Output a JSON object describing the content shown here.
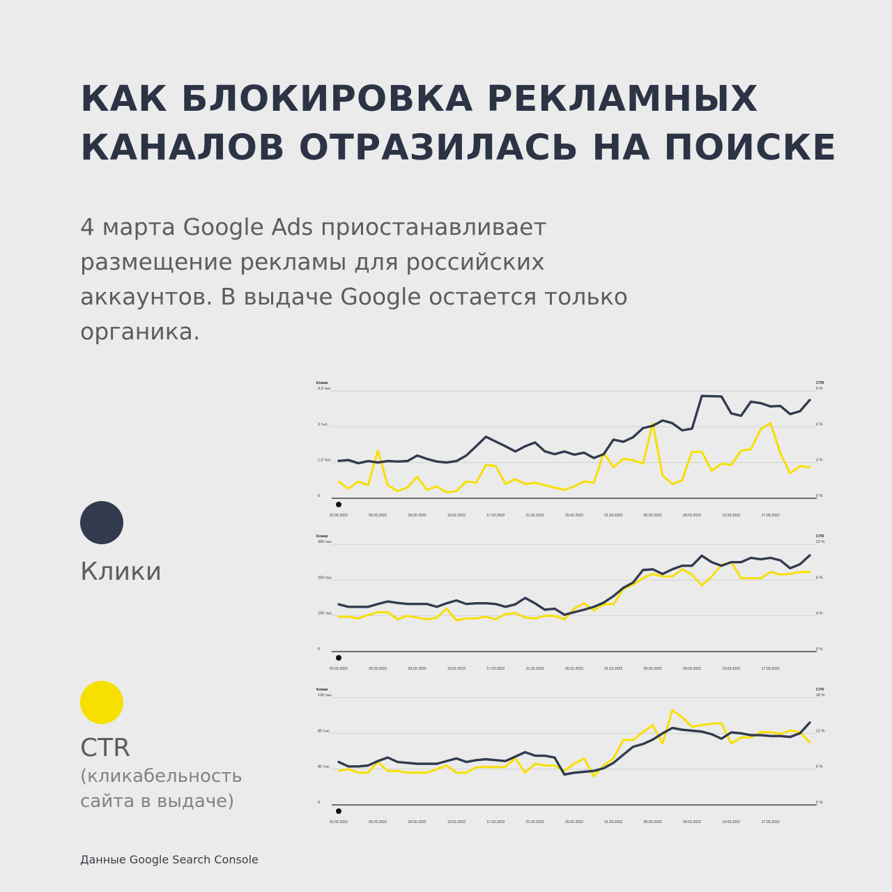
{
  "title": {
    "line1": "КАК БЛОКИРОВКА РЕКЛАМНЫХ",
    "line2": "КАНАЛОВ ОТРАЗИЛАСЬ НА ПОИСКЕ"
  },
  "intro": {
    "line1": "4 марта Google Ads приостанавливает",
    "line2": "размещение рекламы для российских",
    "line3": "аккаунтов. В выдаче Google остается только",
    "line4": "органика."
  },
  "legend": {
    "clicks_label": "Клики",
    "ctr_label": "CTR",
    "ctr_desc_line1": "(кликабельность",
    "ctr_desc_line2": "сайта в выдаче)"
  },
  "colors": {
    "clicks": "#323a4e",
    "ctr": "#f7df00",
    "background": "#ebebeb"
  },
  "source": "Данные Google Search Console",
  "chart_data": [
    {
      "type": "line",
      "left_axis_label": "Клики",
      "right_axis_label": "CTR",
      "left_ticks": [
        "0",
        "1,5 тыс.",
        "3 тыс.",
        "4,5 тыс."
      ],
      "right_ticks": [
        "0 %",
        "3 %",
        "6 %",
        "9 %"
      ],
      "ylim_left": [
        0,
        4500
      ],
      "ylim_right": [
        0,
        9
      ],
      "x_ticks": [
        "01.02.2022",
        "05.02.2022",
        "09.02.2022",
        "13.02.2022",
        "17.02.2022",
        "21.02.2022",
        "25.02.2022",
        "01.03.2022",
        "05.03.2022",
        "09.03.2022",
        "13.03.2022",
        "17.03.2022"
      ],
      "series": [
        {
          "name": "Клики",
          "axis": "left",
          "values": [
            1570,
            1600,
            1470,
            1560,
            1500,
            1560,
            1540,
            1560,
            1790,
            1650,
            1540,
            1500,
            1560,
            1790,
            2180,
            2580,
            2380,
            2180,
            1960,
            2180,
            2340,
            1970,
            1850,
            1960,
            1830,
            1910,
            1690,
            1850,
            2460,
            2370,
            2560,
            2940,
            3040,
            3260,
            3150,
            2850,
            2920,
            4290,
            4280,
            4270,
            3560,
            3460,
            4050,
            3990,
            3850,
            3870,
            3530,
            3650,
            4120
          ]
        },
        {
          "name": "CTR",
          "axis": "right",
          "values": [
            1.4,
            0.8,
            1.4,
            1.1,
            4.0,
            1.1,
            0.6,
            0.9,
            1.8,
            0.7,
            1.0,
            0.5,
            0.6,
            1.4,
            1.3,
            2.8,
            2.7,
            1.2,
            1.6,
            1.2,
            1.3,
            1.1,
            0.9,
            0.7,
            1.0,
            1.4,
            1.3,
            3.8,
            2.6,
            3.3,
            3.2,
            2.9,
            6.3,
            1.9,
            1.2,
            1.5,
            3.9,
            3.9,
            2.3,
            2.9,
            2.8,
            4.0,
            4.1,
            5.8,
            6.3,
            3.8,
            2.1,
            2.7,
            2.6
          ]
        }
      ]
    },
    {
      "type": "line",
      "left_axis_label": "Клики",
      "right_axis_label": "CTR",
      "left_ticks": [
        "0",
        "100 тыс.",
        "200 тыс.",
        "300 тыс."
      ],
      "right_ticks": [
        "0 %",
        "4 %",
        "8 %",
        "12 %"
      ],
      "ylim_left": [
        0,
        300000
      ],
      "ylim_right": [
        0,
        12
      ],
      "x_ticks": [
        "01.02.2022",
        "05.02.2022",
        "09.02.2022",
        "13.02.2022",
        "17.02.2022",
        "21.02.2022",
        "25.02.2022",
        "01.03.2022",
        "05.03.2022",
        "09.03.2022",
        "13.03.2022",
        "17.03.2022"
      ],
      "series": [
        {
          "name": "Клики",
          "axis": "left",
          "values": [
            132000,
            125000,
            125000,
            125000,
            133000,
            140000,
            136000,
            133000,
            133000,
            133000,
            125000,
            135000,
            143000,
            133000,
            135000,
            135000,
            133000,
            125000,
            132000,
            150000,
            135000,
            117000,
            120000,
            103000,
            110000,
            117000,
            125000,
            137000,
            155000,
            178000,
            193000,
            228000,
            230000,
            217000,
            230000,
            240000,
            240000,
            268000,
            250000,
            240000,
            250000,
            250000,
            262000,
            258000,
            262000,
            255000,
            233000,
            244000,
            269000
          ]
        },
        {
          "name": "CTR",
          "axis": "right",
          "values": [
            3.9,
            3.9,
            3.7,
            4.1,
            4.4,
            4.4,
            3.6,
            4.0,
            3.8,
            3.6,
            3.8,
            4.8,
            3.5,
            3.7,
            3.7,
            3.9,
            3.6,
            4.2,
            4.3,
            3.8,
            3.7,
            4.0,
            4.0,
            3.6,
            4.8,
            5.4,
            4.6,
            5.3,
            5.3,
            7.0,
            7.5,
            8.2,
            8.7,
            8.4,
            8.4,
            9.2,
            8.6,
            7.4,
            8.4,
            9.7,
            10.0,
            8.2,
            8.2,
            8.2,
            8.9,
            8.6,
            8.7,
            8.9,
            8.9
          ]
        }
      ]
    },
    {
      "type": "line",
      "left_axis_label": "Клики",
      "right_axis_label": "CTR",
      "left_ticks": [
        "0",
        "40 тыс.",
        "80 тыс.",
        "120 тыс."
      ],
      "right_ticks": [
        "0 %",
        "6 %",
        "12 %",
        "18 %"
      ],
      "ylim_left": [
        0,
        120000
      ],
      "ylim_right": [
        0,
        18
      ],
      "x_ticks": [
        "01.02.2022",
        "05.02.2022",
        "09.02.2022",
        "13.02.2022",
        "17.02.2022",
        "21.02.2022",
        "25.02.2022",
        "01.03.2022",
        "05.03.2022",
        "09.03.2022",
        "13.03.2022",
        "17.03.2022"
      ],
      "series": [
        {
          "name": "Клики",
          "axis": "left",
          "values": [
            48000,
            43000,
            43000,
            44000,
            49000,
            53000,
            48000,
            47000,
            46000,
            46000,
            46000,
            49000,
            52000,
            48000,
            50000,
            51000,
            50000,
            49000,
            54000,
            59000,
            55000,
            55000,
            53000,
            34000,
            36000,
            37000,
            38000,
            41000,
            47000,
            56000,
            65000,
            68000,
            73000,
            80000,
            86000,
            84000,
            83000,
            82000,
            79000,
            74000,
            81000,
            80000,
            78000,
            78000,
            77000,
            77000,
            76000,
            80000,
            92000
          ]
        },
        {
          "name": "CTR",
          "axis": "right",
          "values": [
            5.7,
            6.0,
            5.4,
            5.4,
            7.2,
            5.7,
            5.7,
            5.4,
            5.4,
            5.4,
            6.0,
            6.6,
            5.4,
            5.4,
            6.3,
            6.4,
            6.3,
            6.4,
            7.8,
            5.4,
            6.9,
            6.6,
            6.6,
            5.7,
            6.9,
            7.8,
            4.8,
            6.6,
            7.8,
            10.9,
            10.9,
            12.2,
            13.4,
            10.3,
            15.9,
            14.7,
            13.1,
            13.4,
            13.6,
            13.7,
            10.3,
            11.3,
            11.3,
            12.2,
            12.2,
            11.9,
            12.5,
            12.2,
            10.5
          ]
        }
      ]
    }
  ]
}
